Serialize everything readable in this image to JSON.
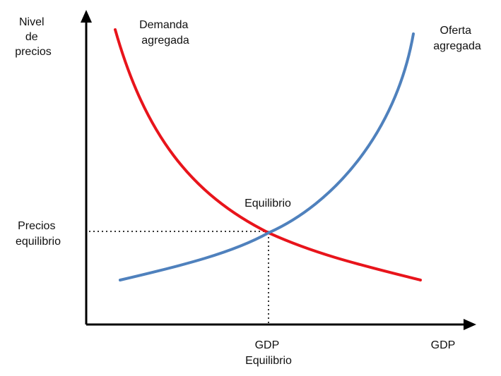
{
  "colors": {
    "axis": "#000000",
    "demand": "#e8141b",
    "supply": "#4f81bd",
    "guide": "#333333"
  },
  "y_axis_label": [
    "Nivel",
    "de",
    "precios"
  ],
  "x_axis_label": "GDP",
  "demand_label": [
    "Demanda",
    "agregada"
  ],
  "supply_label": [
    "Oferta",
    "agregada"
  ],
  "equilibrium_label": "Equilibrio",
  "equilibrium_price_label": [
    "Precios",
    "equilibrio"
  ],
  "equilibrium_gdp_label": [
    "GDP",
    "Equilibrio"
  ]
}
